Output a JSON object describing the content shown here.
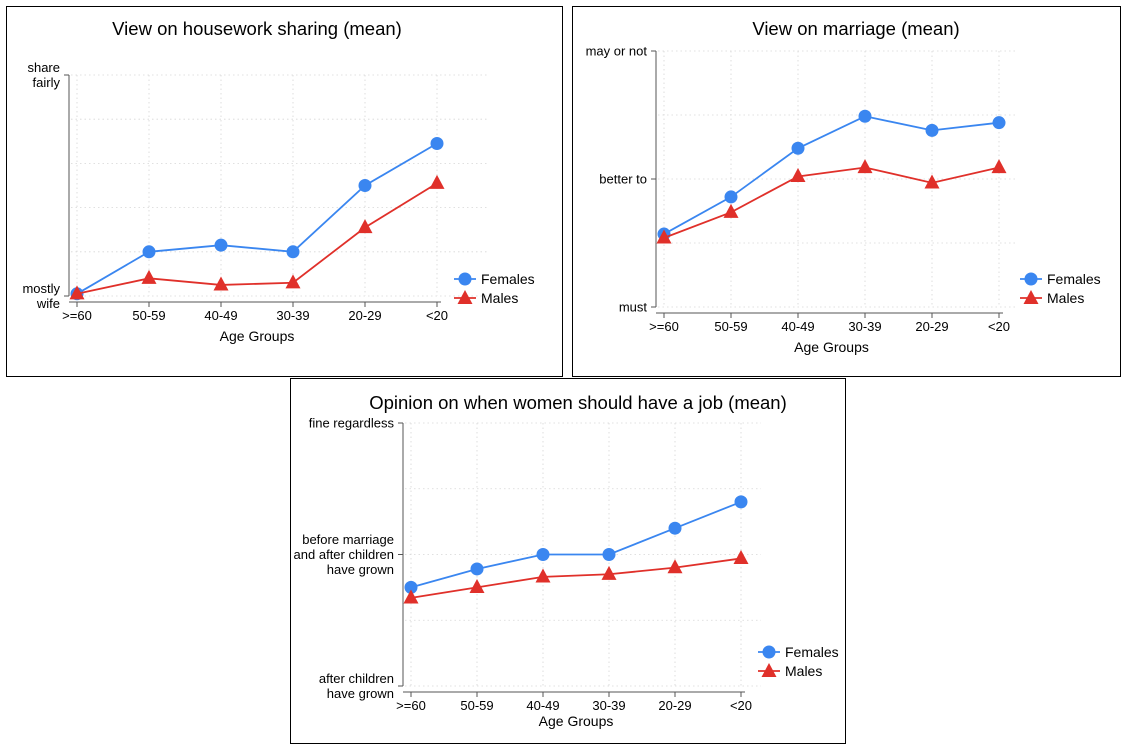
{
  "chart_data": [
    {
      "type": "line",
      "title": "View on housework sharing (mean)",
      "xlabel": "Age Groups",
      "ylabel": "",
      "categories": [
        ">=60",
        "50-59",
        "40-49",
        "30-39",
        "20-29",
        "<20"
      ],
      "y_ticks": [
        {
          "value": 1,
          "label": [
            "mostly",
            "wife"
          ]
        },
        {
          "value": 2,
          "label": [
            "share",
            "fairly"
          ]
        }
      ],
      "ylim": [
        1,
        2
      ],
      "grid": true,
      "legend_position": "right",
      "series": [
        {
          "name": "Females",
          "marker": "circle",
          "color": "#3a86f0",
          "values": [
            1.01,
            1.2,
            1.23,
            1.2,
            1.5,
            1.69
          ]
        },
        {
          "name": "Males",
          "marker": "triangle",
          "color": "#e0302a",
          "values": [
            1.01,
            1.08,
            1.05,
            1.06,
            1.31,
            1.51
          ]
        }
      ]
    },
    {
      "type": "line",
      "title": "View on marriage (mean)",
      "xlabel": "Age Groups",
      "ylabel": "",
      "categories": [
        ">=60",
        "50-59",
        "40-49",
        "30-39",
        "20-29",
        "<20"
      ],
      "y_ticks": [
        {
          "value": 1,
          "label": [
            "must"
          ]
        },
        {
          "value": 2,
          "label": [
            "better to"
          ]
        },
        {
          "value": 3,
          "label": [
            "may or not"
          ]
        }
      ],
      "ylim": [
        1,
        3
      ],
      "grid": true,
      "legend_position": "right",
      "series": [
        {
          "name": "Females",
          "marker": "circle",
          "color": "#3a86f0",
          "values": [
            1.57,
            1.86,
            2.24,
            2.49,
            2.38,
            2.44
          ]
        },
        {
          "name": "Males",
          "marker": "triangle",
          "color": "#e0302a",
          "values": [
            1.54,
            1.74,
            2.02,
            2.09,
            1.97,
            2.09
          ]
        }
      ]
    },
    {
      "type": "line",
      "title": "Opinion on when women should have a job (mean)",
      "xlabel": "Age Groups",
      "ylabel": "",
      "categories": [
        ">=60",
        "50-59",
        "40-49",
        "30-39",
        "20-29",
        "<20"
      ],
      "y_ticks": [
        {
          "value": 1,
          "label": [
            "after children",
            "have grown"
          ]
        },
        {
          "value": 2,
          "label": [
            "before marriage",
            "and after children",
            "have grown"
          ]
        },
        {
          "value": 3,
          "label": [
            "fine regardless"
          ]
        }
      ],
      "ylim": [
        1,
        3
      ],
      "grid": true,
      "legend_position": "right",
      "series": [
        {
          "name": "Females",
          "marker": "circle",
          "color": "#3a86f0",
          "values": [
            1.75,
            1.89,
            2.0,
            2.0,
            2.2,
            2.4
          ]
        },
        {
          "name": "Males",
          "marker": "triangle",
          "color": "#e0302a",
          "values": [
            1.67,
            1.75,
            1.83,
            1.85,
            1.9,
            1.97
          ]
        }
      ]
    }
  ]
}
